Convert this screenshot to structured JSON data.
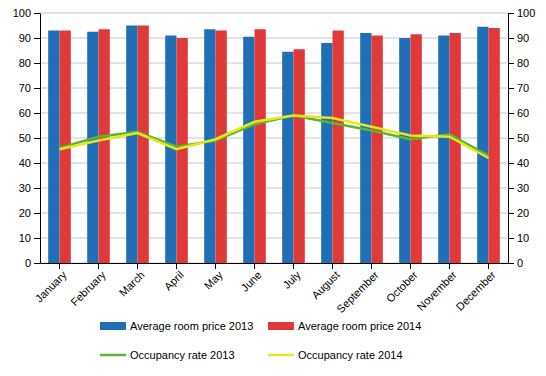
{
  "chart_data": {
    "type": "bar",
    "categories": [
      "January",
      "February",
      "March",
      "April",
      "May",
      "June",
      "July",
      "August",
      "September",
      "October",
      "November",
      "December"
    ],
    "series": [
      {
        "name": "Average room price 2013",
        "type": "bar",
        "color": "#1f6fb7",
        "values": [
          93,
          92.5,
          95,
          91,
          93.5,
          90.5,
          84.5,
          88,
          92,
          90,
          91,
          94.5
        ]
      },
      {
        "name": "Average room price 2014",
        "type": "bar",
        "color": "#e0393a",
        "values": [
          93,
          93.5,
          95,
          90,
          93,
          93.5,
          85.5,
          93,
          91,
          91.5,
          92,
          94
        ]
      },
      {
        "name": "Occupancy rate 2013",
        "type": "line",
        "axis": "y2",
        "color": "#5cb531",
        "values": [
          46,
          50.5,
          52.5,
          46.5,
          49,
          55.5,
          59,
          56,
          53,
          49.5,
          51.5,
          43
        ]
      },
      {
        "name": "Occupancy rate 2014",
        "type": "line",
        "axis": "y2",
        "color": "#e6e61e",
        "values": [
          45.5,
          49,
          52,
          45.5,
          49.5,
          56.5,
          59,
          58,
          54.5,
          51,
          50.5,
          42
        ]
      }
    ],
    "ylim": [
      0,
      100
    ],
    "yticks": [
      0,
      10,
      20,
      30,
      40,
      50,
      60,
      70,
      80,
      90,
      100
    ],
    "y2lim": [
      0,
      100
    ],
    "y2ticks": [
      0,
      10,
      20,
      30,
      40,
      50,
      60,
      70,
      80,
      90,
      100
    ],
    "grid": true,
    "legend": "bottom"
  }
}
